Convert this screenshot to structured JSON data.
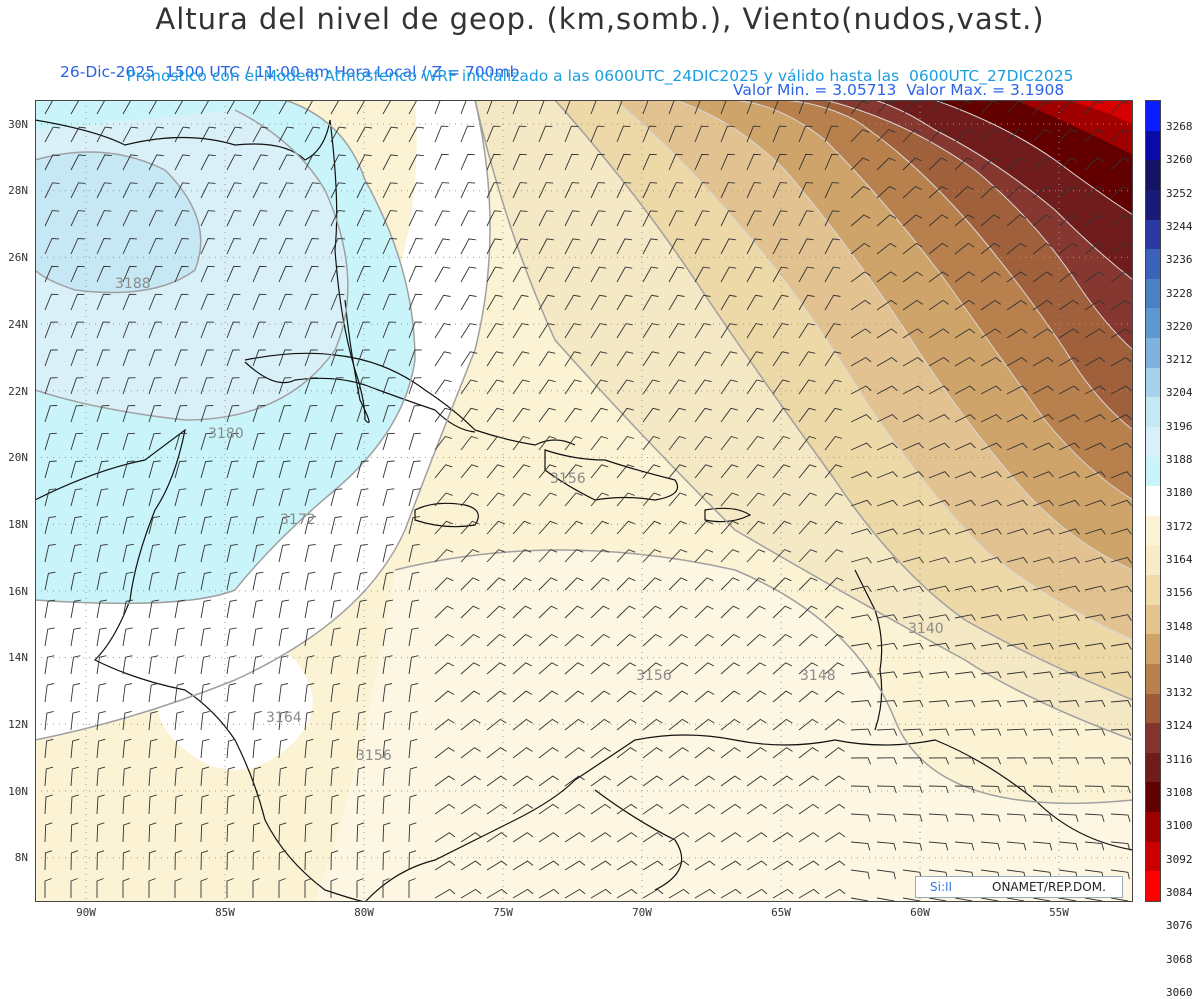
{
  "header": {
    "title": "Altura del nivel de geop. (km,somb.), Viento(nudos,vast.)",
    "info_left": "26-Dic-2025  1500 UTC / 11:00 am Hora Local / Z = 700mb",
    "info_right": "Valor Min. = 3.05713  Valor Max. = 3.1908",
    "model_line": "Pronostico con el Modelo Atmosferico WRF inicializado a las 0600UTC_24DIC2025 y válido hasta las  0600UTC_27DIC2025"
  },
  "map": {
    "lat_labels": [
      "30N",
      "28N",
      "26N",
      "24N",
      "22N",
      "20N",
      "18N",
      "16N",
      "14N",
      "12N",
      "10N",
      "8N"
    ],
    "lon_labels": [
      "90W",
      "85W",
      "80W",
      "75W",
      "70W",
      "65W",
      "60W",
      "55W"
    ],
    "contour_labels": [
      "3188",
      "3180",
      "3172",
      "3164",
      "3156",
      "3156",
      "3156",
      "3148",
      "3140"
    ]
  },
  "colorbar": {
    "labels": [
      "3268",
      "3260",
      "3252",
      "3244",
      "3236",
      "3228",
      "3220",
      "3212",
      "3204",
      "3196",
      "3188",
      "3180",
      "3172",
      "3164",
      "3156",
      "3148",
      "3140",
      "3132",
      "3124",
      "3116",
      "3108",
      "3100",
      "3092",
      "3084",
      "3076",
      "3068",
      "3060"
    ],
    "colors": [
      "#0b1dff",
      "#0a0aa8",
      "#141464",
      "#1a1a78",
      "#2a3aa0",
      "#3a62b8",
      "#4a80c4",
      "#5e98d0",
      "#80b2de",
      "#a6d2ec",
      "#c6e8f4",
      "#daf0f8",
      "#c8f4fa",
      "#ffffff",
      "#fbf3d4",
      "#f8ecc8",
      "#f0dcaa",
      "#e4c48c",
      "#d0a468",
      "#b8804c",
      "#9e5c3a",
      "#84342c",
      "#701c1c",
      "#620000",
      "#9c0000",
      "#cc0000",
      "#ff0000"
    ]
  },
  "credit": {
    "logo_text": "Si:II",
    "org": "ONAMET/REP.DOM."
  }
}
